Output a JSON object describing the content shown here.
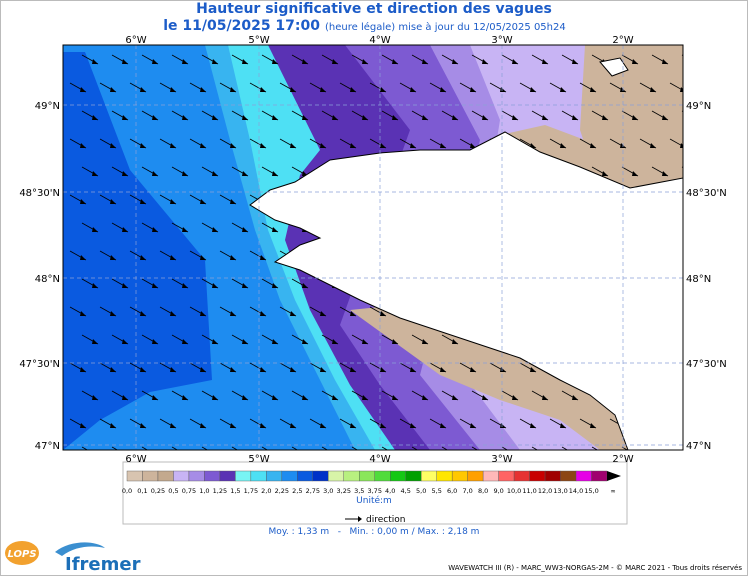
{
  "header": {
    "title": "Hauteur significative et direction des vagues",
    "date": "le 11/05/2025 17:00",
    "update": "(heure légale) mise à jour du 12/05/2025 05h24"
  },
  "map": {
    "lon_labels": [
      "6°W",
      "5°W",
      "4°W",
      "3°W",
      "2°W"
    ],
    "lat_labels": [
      "49°N",
      "48°30'N",
      "48°N",
      "47°30'N",
      "47°N"
    ]
  },
  "legend": {
    "labels": [
      "0,0",
      "0,1",
      "0,25",
      "0,5",
      "0,75",
      "1,0",
      "1,25",
      "1,5",
      "1,75",
      "2,0",
      "2,25",
      "2,5",
      "2,75",
      "3,0",
      "3,25",
      "3,5",
      "3,75",
      "4,0",
      "4,5",
      "5,0",
      "5,5",
      "6,0",
      "7,0",
      "8,0",
      "9,0",
      "10,0",
      "11,0",
      "12,0",
      "13,0",
      "14,0",
      "15,0",
      "∞"
    ],
    "colors": [
      "#d8c4b0",
      "#cdb49c",
      "#c3a98e",
      "#c8b4f4",
      "#a68ce6",
      "#7d5ad2",
      "#5a32b4",
      "#78f4f4",
      "#4ee0f4",
      "#38b4f0",
      "#1e8cf0",
      "#0a5ae0",
      "#0032c8",
      "#d8f4a8",
      "#b8f080",
      "#8ae65a",
      "#50dc3c",
      "#14c814",
      "#00a000",
      "#ffff64",
      "#ffe600",
      "#ffc800",
      "#ffa000",
      "#ffb8b8",
      "#ff6464",
      "#e63232",
      "#c80000",
      "#a00000",
      "#8c4614",
      "#e600e6",
      "#a0006e"
    ],
    "unit": "Unité:m",
    "direction": "direction",
    "stats": "Moy. : 1,33 m   -   Min. : 0,00 m / Max. : 2,18 m"
  },
  "logos": {
    "lops": "LOPS",
    "ifremer": "Ifremer"
  },
  "footer": "WAVEWATCH III (R) - MARC_WW3-NORGAS-2M - © MARC 2021 - Tous droits réservés"
}
